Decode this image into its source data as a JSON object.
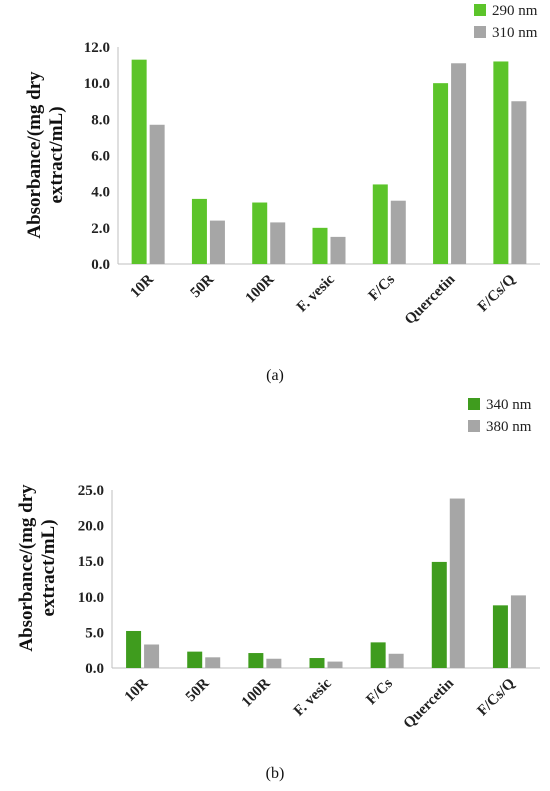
{
  "chart_data": [
    {
      "type": "bar",
      "title": "",
      "caption": "(a)",
      "ylabel_lines": [
        "Absorbance/(mg dry",
        "extract/mL)"
      ],
      "xlabel": "",
      "categories": [
        "10R",
        "50R",
        "100R",
        "F. vesic",
        "F/Cs",
        "Quercetin",
        "F/Cs/Q"
      ],
      "yticks": [
        "0.0",
        "2.0",
        "4.0",
        "6.0",
        "8.0",
        "10.0",
        "12.0"
      ],
      "ylim": [
        0,
        12
      ],
      "grid": false,
      "legend_position": "top-right",
      "series": [
        {
          "name": "290 nm",
          "color": "#5cc42a",
          "values": [
            11.3,
            3.6,
            3.4,
            2.0,
            4.4,
            10.0,
            11.2
          ]
        },
        {
          "name": "310 nm",
          "color": "#a6a6a6",
          "values": [
            7.7,
            2.4,
            2.3,
            1.5,
            3.5,
            11.1,
            9.0
          ]
        }
      ]
    },
    {
      "type": "bar",
      "title": "",
      "caption": "(b)",
      "ylabel_lines": [
        "Absorbance/(mg dry",
        "extract/mL)"
      ],
      "xlabel": "",
      "categories": [
        "10R",
        "50R",
        "100R",
        "F. vesic",
        "F/Cs",
        "Quercetin",
        "F/Cs/Q"
      ],
      "yticks": [
        "0.0",
        "5.0",
        "10.0",
        "15.0",
        "20.0",
        "25.0"
      ],
      "ylim": [
        0,
        25
      ],
      "grid": false,
      "legend_position": "top-right",
      "series": [
        {
          "name": "340 nm",
          "color": "#3f9c1e",
          "values": [
            5.2,
            2.3,
            2.1,
            1.4,
            3.6,
            14.9,
            8.8
          ]
        },
        {
          "name": "380 nm",
          "color": "#a6a6a6",
          "values": [
            3.3,
            1.5,
            1.3,
            0.9,
            2.0,
            23.8,
            10.2
          ]
        }
      ]
    }
  ]
}
